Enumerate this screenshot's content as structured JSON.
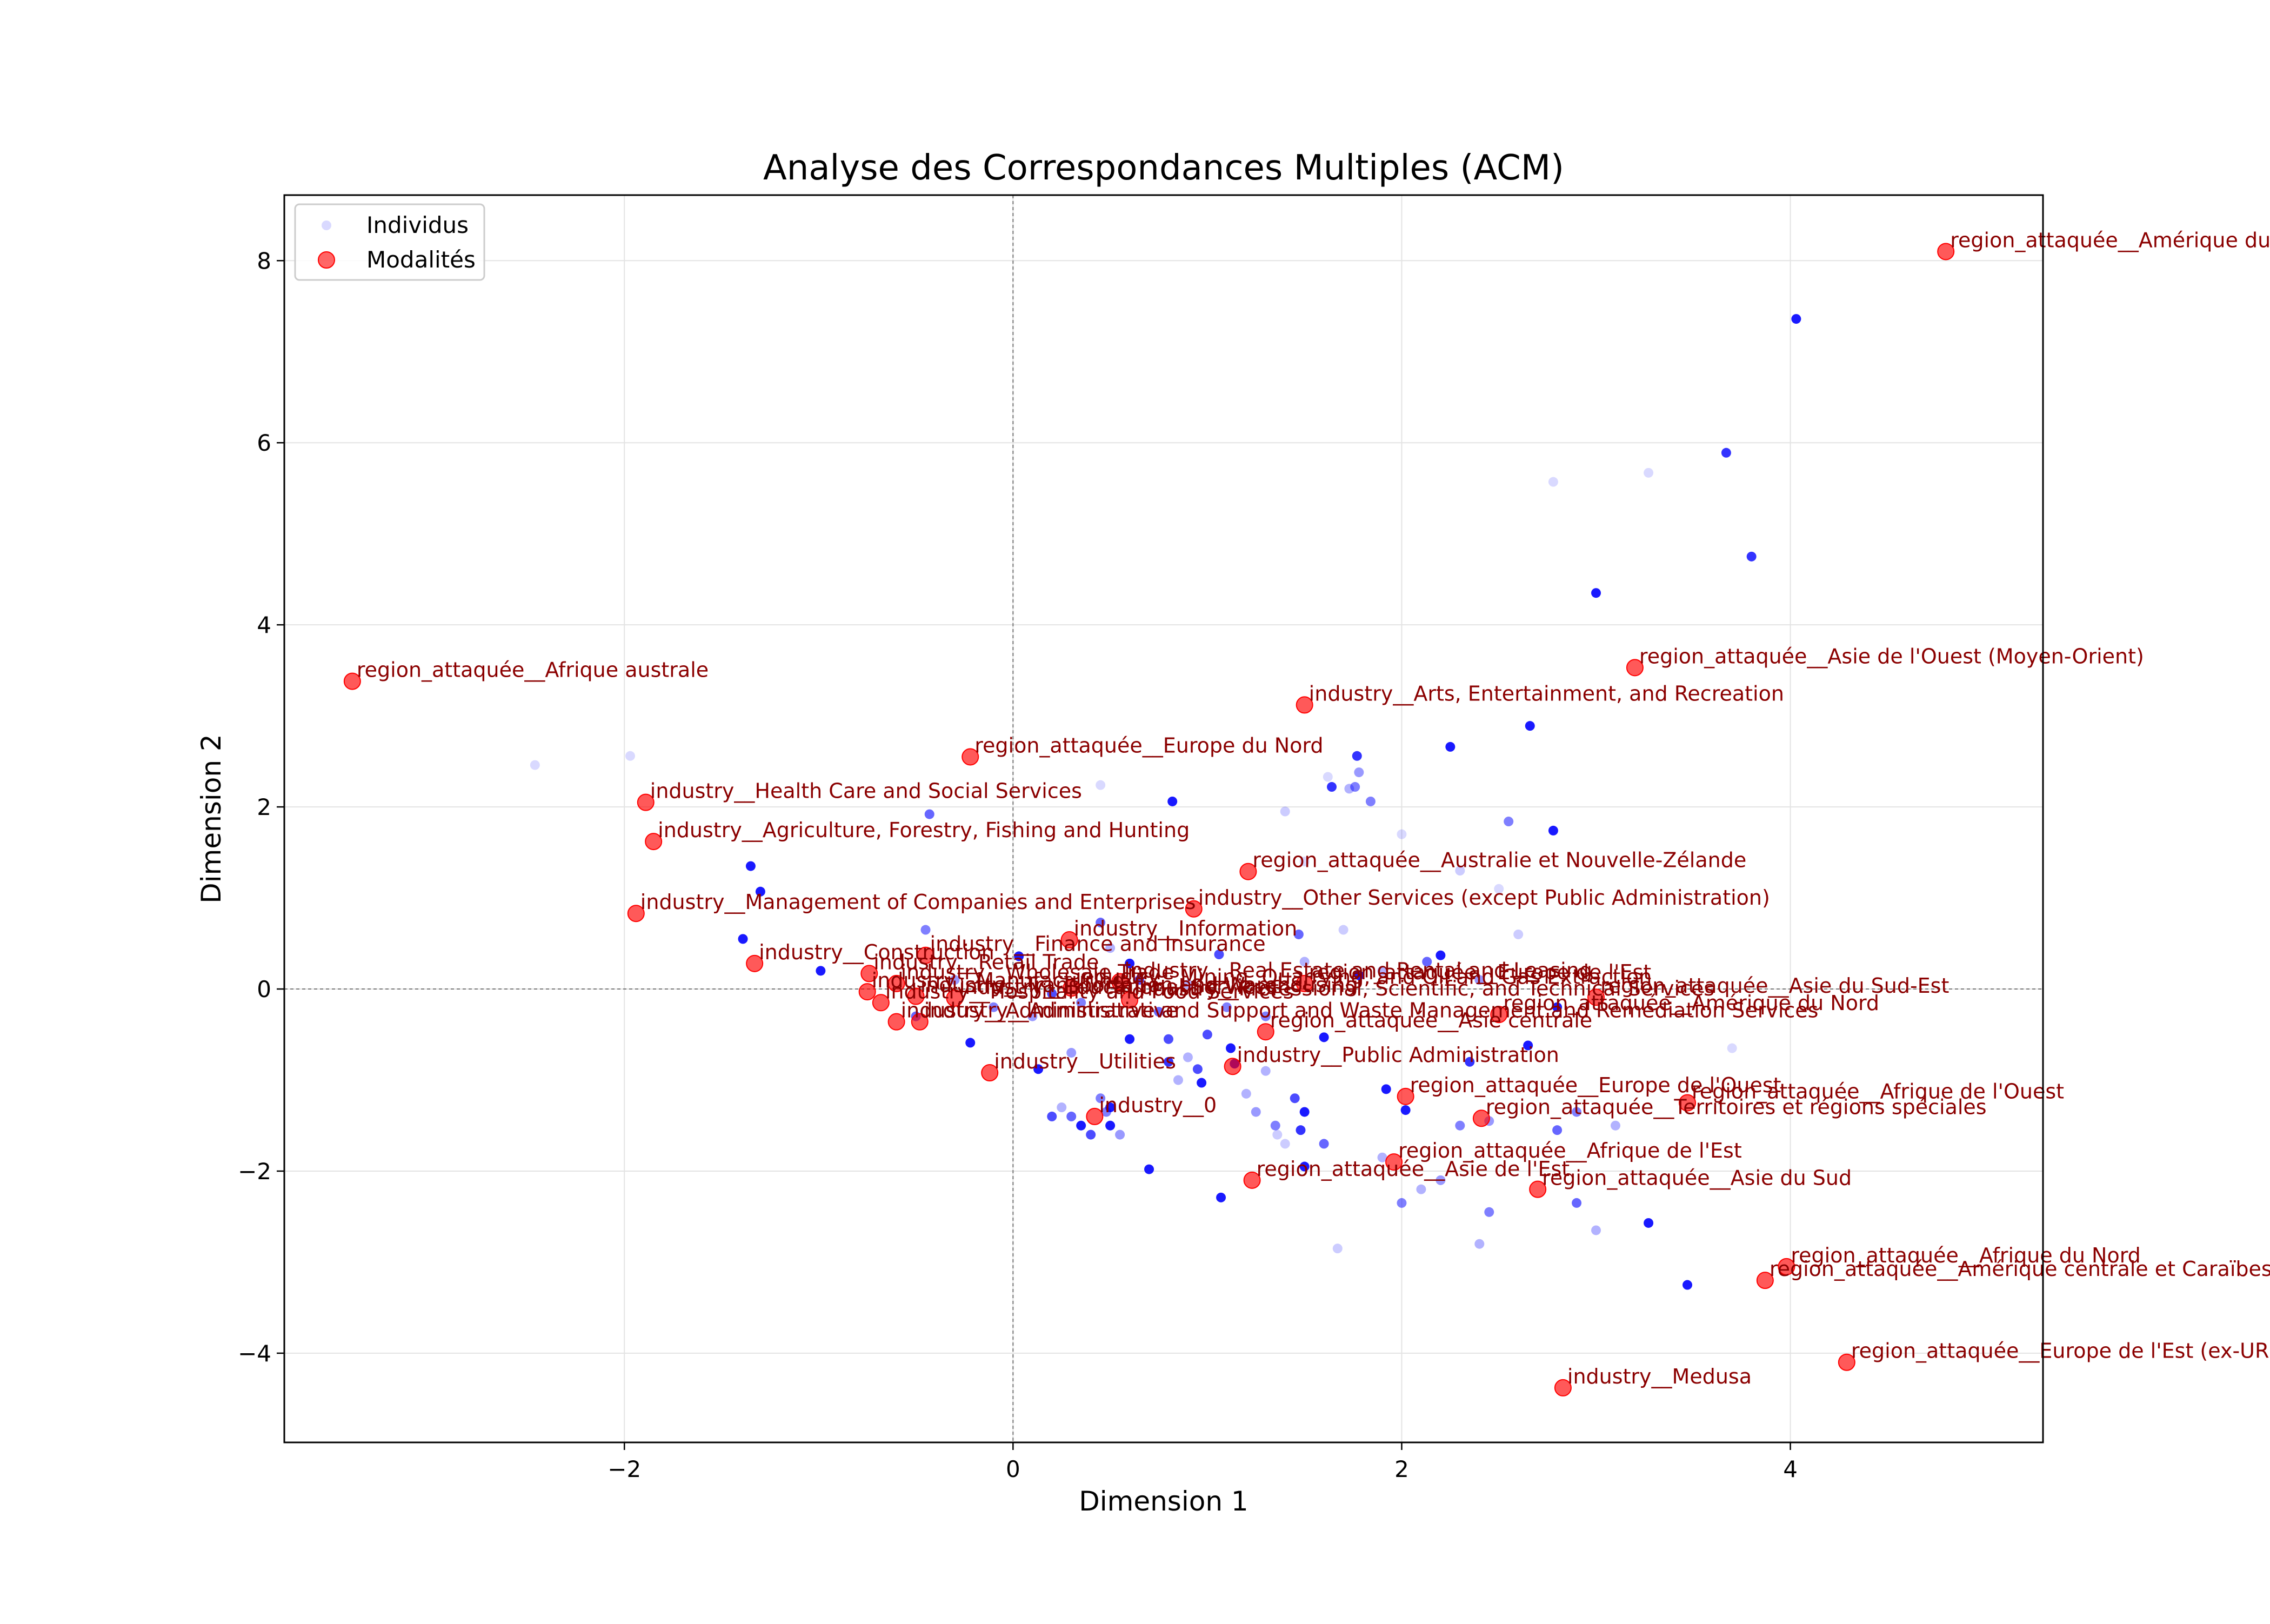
{
  "chart_data": {
    "type": "scatter",
    "title": "Analyse des Correspondances Multiples (ACM)",
    "xlabel": "Dimension 1",
    "ylabel": "Dimension 2",
    "xlim": [
      -3.75,
      5.3
    ],
    "ylim": [
      -4.98,
      8.72
    ],
    "xticks": [
      -2,
      0,
      2,
      4
    ],
    "yticks": [
      -4,
      -2,
      0,
      2,
      4,
      6,
      8
    ],
    "grid": true,
    "legend_position": "upper left",
    "colors": {
      "individus": "#0000ff",
      "modalites": "#ff0000",
      "labels": "#8b0000"
    },
    "legend": [
      {
        "name": "Individus",
        "marker": "small-blue-dot"
      },
      {
        "name": "Modalités",
        "marker": "red-dot"
      }
    ],
    "series": [
      {
        "name": "Individus",
        "points": [
          [
            4.03,
            7.36,
            0.9
          ],
          [
            3.67,
            5.89,
            0.8
          ],
          [
            3.8,
            4.75,
            0.8
          ],
          [
            3.0,
            4.35,
            0.9
          ],
          [
            2.78,
            5.57,
            0.15
          ],
          [
            3.27,
            5.67,
            0.15
          ],
          [
            2.25,
            2.66,
            0.9
          ],
          [
            2.66,
            2.89,
            0.9
          ],
          [
            2.78,
            1.74,
            0.9
          ],
          [
            1.77,
            2.56,
            0.8
          ],
          [
            1.64,
            2.22,
            0.8
          ],
          [
            1.76,
            2.22,
            0.5
          ],
          [
            1.78,
            2.38,
            0.4
          ],
          [
            1.73,
            2.2,
            0.3
          ],
          [
            1.84,
            2.06,
            0.5
          ],
          [
            1.62,
            2.33,
            0.15
          ],
          [
            2.55,
            1.84,
            0.5
          ],
          [
            2.5,
            1.1,
            0.15
          ],
          [
            2.6,
            0.6,
            0.2
          ],
          [
            2.0,
            1.7,
            0.15
          ],
          [
            2.3,
            1.3,
            0.2
          ],
          [
            1.4,
            1.95,
            0.2
          ],
          [
            1.5,
            1.4,
            0.15
          ],
          [
            0.82,
            2.06,
            0.9
          ],
          [
            0.45,
            2.24,
            0.15
          ],
          [
            -0.43,
            1.92,
            0.6
          ],
          [
            -1.97,
            2.56,
            0.15
          ],
          [
            -2.46,
            2.46,
            0.15
          ],
          [
            -1.35,
            1.35,
            0.9
          ],
          [
            -1.3,
            1.07,
            0.9
          ],
          [
            -1.39,
            0.55,
            0.9
          ],
          [
            -0.99,
            0.2,
            0.9
          ],
          [
            -0.45,
            0.65,
            0.5
          ],
          [
            0.03,
            0.36,
            0.9
          ],
          [
            0.45,
            0.73,
            0.6
          ],
          [
            0.5,
            0.45,
            0.3
          ],
          [
            1.06,
            0.38,
            0.7
          ],
          [
            1.47,
            0.6,
            0.6
          ],
          [
            1.7,
            0.65,
            0.2
          ],
          [
            0.6,
            0.28,
            0.9
          ],
          [
            0.65,
            0.1,
            0.7
          ],
          [
            1.5,
            0.3,
            0.3
          ],
          [
            1.78,
            0.15,
            0.9
          ],
          [
            2.2,
            0.37,
            0.9
          ],
          [
            2.13,
            0.3,
            0.6
          ],
          [
            1.9,
            0.2,
            0.3
          ],
          [
            2.4,
            0.1,
            0.4
          ],
          [
            2.8,
            -0.2,
            0.9
          ],
          [
            2.65,
            -0.62,
            0.9
          ],
          [
            2.35,
            -0.8,
            0.8
          ],
          [
            3.7,
            -0.65,
            0.15
          ],
          [
            1.6,
            -0.53,
            0.9
          ],
          [
            1.3,
            -0.3,
            0.5
          ],
          [
            1.0,
            -0.5,
            0.7
          ],
          [
            0.8,
            -0.55,
            0.7
          ],
          [
            0.6,
            -0.55,
            0.9
          ],
          [
            -0.22,
            -0.59,
            0.9
          ],
          [
            0.13,
            -0.88,
            0.9
          ],
          [
            0.8,
            -0.8,
            0.8
          ],
          [
            0.95,
            -0.88,
            0.7
          ],
          [
            0.97,
            -1.03,
            0.9
          ],
          [
            0.9,
            -0.75,
            0.3
          ],
          [
            0.85,
            -1.0,
            0.3
          ],
          [
            1.12,
            -0.65,
            0.9
          ],
          [
            1.14,
            -0.82,
            0.9
          ],
          [
            1.3,
            -0.9,
            0.3
          ],
          [
            1.2,
            -1.15,
            0.3
          ],
          [
            1.45,
            -1.2,
            0.7
          ],
          [
            1.5,
            -1.35,
            0.9
          ],
          [
            1.48,
            -1.55,
            0.8
          ],
          [
            1.35,
            -1.5,
            0.5
          ],
          [
            1.25,
            -1.35,
            0.4
          ],
          [
            1.36,
            -1.6,
            0.2
          ],
          [
            1.4,
            -1.7,
            0.2
          ],
          [
            1.6,
            -1.7,
            0.6
          ],
          [
            1.92,
            -1.1,
            0.9
          ],
          [
            2.02,
            -1.33,
            0.9
          ],
          [
            2.3,
            -1.5,
            0.5
          ],
          [
            2.45,
            -1.45,
            0.4
          ],
          [
            2.8,
            -1.55,
            0.6
          ],
          [
            2.9,
            -1.35,
            0.5
          ],
          [
            3.1,
            -1.5,
            0.3
          ],
          [
            2.9,
            -2.35,
            0.6
          ],
          [
            3.0,
            -2.65,
            0.3
          ],
          [
            3.27,
            -2.57,
            0.9
          ],
          [
            3.47,
            -3.25,
            0.9
          ],
          [
            2.45,
            -2.45,
            0.5
          ],
          [
            2.4,
            -2.8,
            0.3
          ],
          [
            2.2,
            -2.1,
            0.4
          ],
          [
            2.1,
            -2.2,
            0.3
          ],
          [
            2.0,
            -2.35,
            0.5
          ],
          [
            1.9,
            -1.85,
            0.3
          ],
          [
            1.5,
            -1.95,
            0.9
          ],
          [
            1.67,
            -2.85,
            0.2
          ],
          [
            1.07,
            -2.29,
            0.9
          ],
          [
            0.7,
            -1.98,
            0.9
          ],
          [
            0.4,
            -1.6,
            0.7
          ],
          [
            0.3,
            -1.4,
            0.6
          ],
          [
            0.35,
            -1.5,
            0.9
          ],
          [
            0.5,
            -1.5,
            0.9
          ],
          [
            0.48,
            -1.35,
            0.5
          ],
          [
            0.55,
            -1.6,
            0.4
          ],
          [
            0.5,
            -1.3,
            0.9
          ],
          [
            0.2,
            -1.4,
            0.7
          ],
          [
            0.25,
            -1.3,
            0.3
          ],
          [
            0.45,
            -1.2,
            0.5
          ],
          [
            0.3,
            -0.7,
            0.4
          ],
          [
            -0.5,
            -0.3,
            0.6
          ],
          [
            -0.1,
            -0.2,
            0.5
          ],
          [
            0.1,
            -0.3,
            0.4
          ],
          [
            0.2,
            -0.05,
            0.7
          ],
          [
            0.35,
            -0.15,
            0.5
          ],
          [
            -0.3,
            0.1,
            0.4
          ],
          [
            0.9,
            0.05,
            0.3
          ],
          [
            1.1,
            -0.2,
            0.5
          ],
          [
            0.75,
            -0.25,
            0.6
          ]
        ]
      },
      {
        "name": "Modalités",
        "points": [
          {
            "x": 4.8,
            "y": 8.1,
            "label": "region_attaquée__Amérique du"
          },
          {
            "x": -3.4,
            "y": 3.38,
            "label": "region_attaquée__Afrique australe"
          },
          {
            "x": 3.2,
            "y": 3.53,
            "label": "region_attaquée__Asie de l'Ouest (Moyen-Orient)"
          },
          {
            "x": 1.5,
            "y": 3.12,
            "label": "industry__Arts, Entertainment, and Recreation"
          },
          {
            "x": -0.22,
            "y": 2.55,
            "label": "region_attaquée__Europe du Nord"
          },
          {
            "x": -1.89,
            "y": 2.05,
            "label": "industry__Health Care and Social Services"
          },
          {
            "x": -1.85,
            "y": 1.62,
            "label": "industry__Agriculture, Forestry, Fishing and Hunting"
          },
          {
            "x": 1.21,
            "y": 1.29,
            "label": "region_attaquée__Australie et Nouvelle-Zélande"
          },
          {
            "x": -1.94,
            "y": 0.83,
            "label": "industry__Management of Companies and Enterprises"
          },
          {
            "x": 0.93,
            "y": 0.88,
            "label": "industry__Other Services (except Public Administration)"
          },
          {
            "x": 0.29,
            "y": 0.54,
            "label": "industry__Information"
          },
          {
            "x": -0.45,
            "y": 0.37,
            "label": "industry__Finance and Insurance"
          },
          {
            "x": -1.33,
            "y": 0.28,
            "label": "industry__Construction"
          },
          {
            "x": -0.74,
            "y": 0.17,
            "label": "industry__Retail Trade"
          },
          {
            "x": 0.55,
            "y": 0.08,
            "label": "industry__Real Estate and Rental and Leasing"
          },
          {
            "x": 1.5,
            "y": 0.06,
            "label": "region_attaquée__Europe de l'Est"
          },
          {
            "x": -0.6,
            "y": 0.06,
            "label": "industry__Wholesale Trade"
          },
          {
            "x": 0.3,
            "y": 0.01,
            "label": "industry__Mining, Quarrying, and Oil and Gas Extraction"
          },
          {
            "x": -0.75,
            "y": -0.03,
            "label": "industry__Manufacturing"
          },
          {
            "x": -0.5,
            "y": -0.08,
            "label": "industry__Transportation and Warehousing"
          },
          {
            "x": -0.3,
            "y": -0.1,
            "label": "industry__Educational Services"
          },
          {
            "x": 0.6,
            "y": -0.12,
            "label": "industry__Professional, Scientific, and Technical Services"
          },
          {
            "x": 3.0,
            "y": -0.09,
            "label": "region_attaquée__Asie du Sud-Est"
          },
          {
            "x": -0.68,
            "y": -0.15,
            "label": "industry__Hospitality and Food Services"
          },
          {
            "x": 2.5,
            "y": -0.28,
            "label": "region_attaquée__Amérique du Nord"
          },
          {
            "x": -0.6,
            "y": -0.36,
            "label": "industry__Administrative and Support and Waste Management and Remediation Services"
          },
          {
            "x": -0.48,
            "y": -0.36,
            "label": "industry__Administrative"
          },
          {
            "x": 1.3,
            "y": -0.47,
            "label": "region_attaquée__Asie centrale"
          },
          {
            "x": 1.13,
            "y": -0.85,
            "label": "industry__Public Administration"
          },
          {
            "x": -0.12,
            "y": -0.92,
            "label": "industry__Utilities"
          },
          {
            "x": 2.02,
            "y": -1.18,
            "label": "region_attaquée__Europe de l'Ouest"
          },
          {
            "x": 3.47,
            "y": -1.25,
            "label": "region_attaquée__Afrique de l'Ouest"
          },
          {
            "x": 2.41,
            "y": -1.42,
            "label": "region_attaquée__Territoires et régions spéciales"
          },
          {
            "x": 0.42,
            "y": -1.4,
            "label": "industry__0"
          },
          {
            "x": 1.96,
            "y": -1.9,
            "label": "region_attaquée__Afrique de l'Est"
          },
          {
            "x": 1.23,
            "y": -2.1,
            "label": "region_attaquée__Asie de l'Est"
          },
          {
            "x": 2.7,
            "y": -2.2,
            "label": "region_attaquée__Asie du Sud"
          },
          {
            "x": 3.98,
            "y": -3.05,
            "label": "region_attaquée__Afrique du Nord"
          },
          {
            "x": 3.87,
            "y": -3.2,
            "label": "region_attaquée__Amérique centrale et Caraïbes"
          },
          {
            "x": 4.29,
            "y": -4.1,
            "label": "region_attaquée__Europe de l'Est (ex-UR"
          },
          {
            "x": 2.83,
            "y": -4.38,
            "label": "industry__Medusa"
          }
        ]
      }
    ]
  }
}
